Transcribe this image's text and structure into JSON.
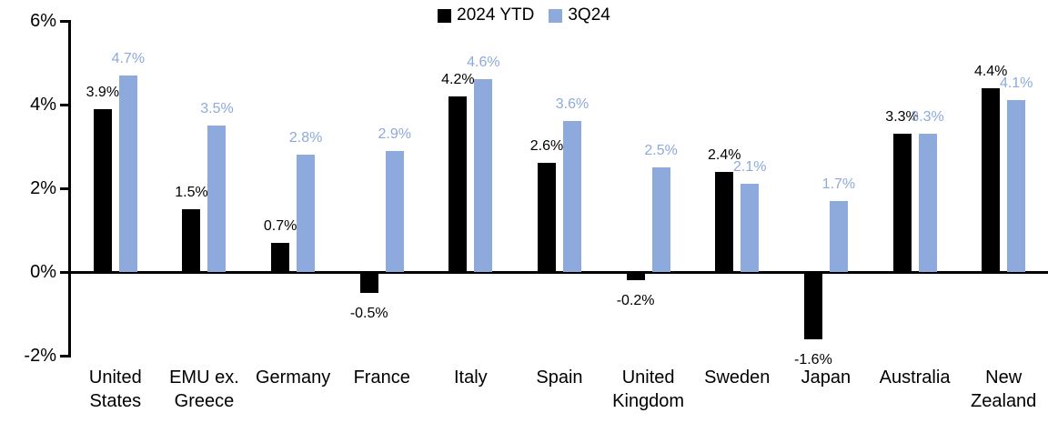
{
  "chart_data": {
    "type": "bar",
    "title": "",
    "categories": [
      "United States",
      "EMU ex. Greece",
      "Germany",
      "France",
      "Italy",
      "Spain",
      "United Kingdom",
      "Sweden",
      "Japan",
      "Australia",
      "New Zealand"
    ],
    "category_display_lines": [
      [
        "United",
        "States"
      ],
      [
        "EMU ex.",
        "Greece"
      ],
      [
        "Germany"
      ],
      [
        "France"
      ],
      [
        "Italy"
      ],
      [
        "Spain"
      ],
      [
        "United",
        "Kingdom"
      ],
      [
        "Sweden"
      ],
      [
        "Japan"
      ],
      [
        "Australia"
      ],
      [
        "New",
        "Zealand"
      ]
    ],
    "series": [
      {
        "name": "2024 YTD",
        "color": "#000000",
        "values": [
          3.9,
          1.5,
          0.7,
          -0.5,
          4.2,
          2.6,
          -0.2,
          2.4,
          -1.6,
          3.3,
          4.4
        ],
        "data_labels": [
          "3.9%",
          "1.5%",
          "0.7%",
          "-0.5%",
          "4.2%",
          "2.6%",
          "-0.2%",
          "2.4%",
          "-1.6%",
          "3.3%",
          "4.4%"
        ]
      },
      {
        "name": "3Q24",
        "color": "#8EA9DB",
        "values": [
          4.7,
          3.5,
          2.8,
          2.9,
          4.6,
          3.6,
          2.5,
          2.1,
          1.7,
          3.3,
          4.1
        ],
        "data_labels": [
          "4.7%",
          "3.5%",
          "2.8%",
          "2.9%",
          "4.6%",
          "3.6%",
          "2.5%",
          "2.1%",
          "1.7%",
          "3.3%",
          "4.1%"
        ]
      }
    ],
    "y_axis": {
      "range": [
        -2,
        6
      ],
      "ticks": [
        {
          "value": 6,
          "label": "6%"
        },
        {
          "value": 4,
          "label": "4%"
        },
        {
          "value": 2,
          "label": "2%"
        },
        {
          "value": 0,
          "label": "0%"
        },
        {
          "value": -2,
          "label": "-2%"
        }
      ]
    },
    "legend_position": "top-center",
    "grid": false,
    "colors": {
      "series_2024_ytd": "#000000",
      "series_3q24": "#8EA9DB",
      "axis": "#000000",
      "background": "#FFFFFF"
    }
  }
}
